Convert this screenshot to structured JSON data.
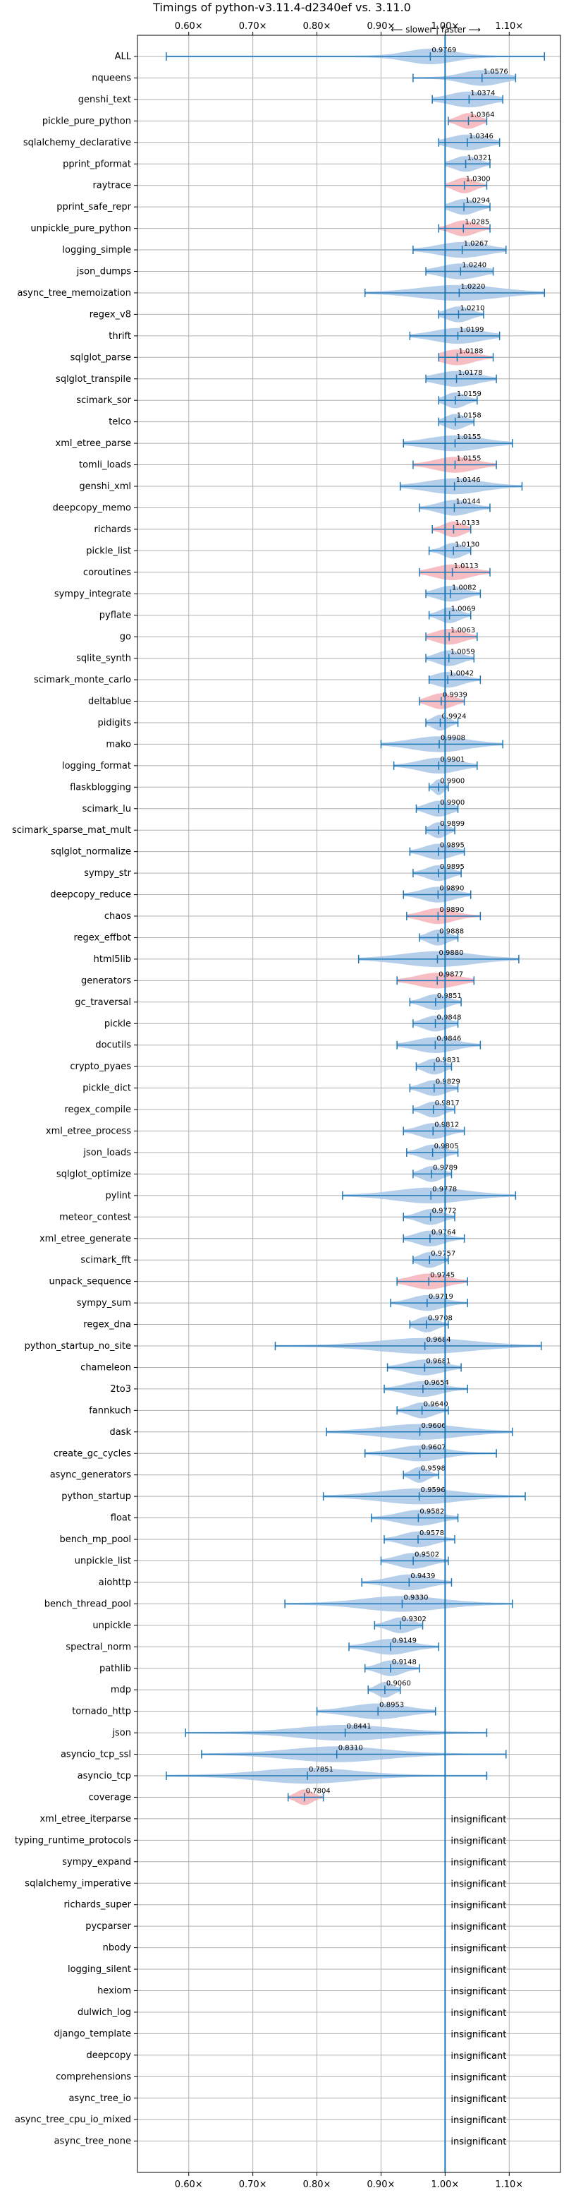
{
  "chart_data": {
    "type": "violin",
    "title": "Timings of python-v3.11.4-d2340ef vs. 3.11.0",
    "direction_label": "⟵ slower | faster ⟶",
    "xlim": [
      0.52,
      1.18
    ],
    "xticks": [
      0.6,
      0.7,
      0.8,
      0.9,
      1.0,
      1.1
    ],
    "xtick_labels": [
      "0.60×",
      "0.70×",
      "0.80×",
      "0.90×",
      "1.00×",
      "1.10×"
    ],
    "reference_line": 1.0,
    "grid": true,
    "colors": {
      "faster": "#a8c6e6",
      "slower": "#f5b3b8",
      "line": "#1f77b4",
      "grid": "#b0b0b0"
    },
    "benchmarks": [
      {
        "name": "ALL",
        "mean": 0.9769,
        "min": 0.565,
        "max": 1.155,
        "spread": 0.06
      },
      {
        "name": "nqueens",
        "mean": 1.0576,
        "min": 0.95,
        "max": 1.11,
        "spread": 0.05
      },
      {
        "name": "genshi_text",
        "mean": 1.0374,
        "min": 0.98,
        "max": 1.09,
        "spread": 0.05
      },
      {
        "name": "pickle_pure_python",
        "mean": 1.0364,
        "min": 1.005,
        "max": 1.065,
        "spread": 0.025
      },
      {
        "name": "sqlalchemy_declarative",
        "mean": 1.0346,
        "min": 0.99,
        "max": 1.085,
        "spread": 0.045
      },
      {
        "name": "pprint_pformat",
        "mean": 1.0321,
        "min": 1.0,
        "max": 1.07,
        "spread": 0.03
      },
      {
        "name": "raytrace",
        "mean": 1.03,
        "min": 1.0,
        "max": 1.065,
        "spread": 0.025
      },
      {
        "name": "pprint_safe_repr",
        "mean": 1.0294,
        "min": 1.0,
        "max": 1.07,
        "spread": 0.03
      },
      {
        "name": "unpickle_pure_python",
        "mean": 1.0285,
        "min": 0.99,
        "max": 1.07,
        "spread": 0.03
      },
      {
        "name": "logging_simple",
        "mean": 1.0267,
        "min": 0.95,
        "max": 1.095,
        "spread": 0.06
      },
      {
        "name": "json_dumps",
        "mean": 1.024,
        "min": 0.97,
        "max": 1.075,
        "spread": 0.05
      },
      {
        "name": "async_tree_memoization",
        "mean": 1.022,
        "min": 0.875,
        "max": 1.155,
        "spread": 0.1
      },
      {
        "name": "regex_v8",
        "mean": 1.021,
        "min": 0.99,
        "max": 1.06,
        "spread": 0.03
      },
      {
        "name": "thrift",
        "mean": 1.0199,
        "min": 0.945,
        "max": 1.085,
        "spread": 0.06
      },
      {
        "name": "sqlglot_parse",
        "mean": 1.0188,
        "min": 0.99,
        "max": 1.075,
        "spread": 0.04
      },
      {
        "name": "sqlglot_transpile",
        "mean": 1.0178,
        "min": 0.97,
        "max": 1.08,
        "spread": 0.05
      },
      {
        "name": "scimark_sor",
        "mean": 1.0159,
        "min": 0.99,
        "max": 1.05,
        "spread": 0.025
      },
      {
        "name": "telco",
        "mean": 1.0158,
        "min": 0.99,
        "max": 1.045,
        "spread": 0.025
      },
      {
        "name": "xml_etree_parse",
        "mean": 1.0155,
        "min": 0.935,
        "max": 1.105,
        "spread": 0.07
      },
      {
        "name": "tomli_loads",
        "mean": 1.0155,
        "min": 0.95,
        "max": 1.08,
        "spread": 0.05
      },
      {
        "name": "genshi_xml",
        "mean": 1.0146,
        "min": 0.93,
        "max": 1.12,
        "spread": 0.07
      },
      {
        "name": "deepcopy_memo",
        "mean": 1.0144,
        "min": 0.96,
        "max": 1.07,
        "spread": 0.04
      },
      {
        "name": "richards",
        "mean": 1.0133,
        "min": 0.98,
        "max": 1.04,
        "spread": 0.025
      },
      {
        "name": "pickle_list",
        "mean": 1.013,
        "min": 0.975,
        "max": 1.04,
        "spread": 0.025
      },
      {
        "name": "coroutines",
        "mean": 1.0113,
        "min": 0.96,
        "max": 1.07,
        "spread": 0.045
      },
      {
        "name": "sympy_integrate",
        "mean": 1.0082,
        "min": 0.97,
        "max": 1.055,
        "spread": 0.035
      },
      {
        "name": "pyflate",
        "mean": 1.0069,
        "min": 0.975,
        "max": 1.04,
        "spread": 0.025
      },
      {
        "name": "go",
        "mean": 1.0063,
        "min": 0.97,
        "max": 1.05,
        "spread": 0.035
      },
      {
        "name": "sqlite_synth",
        "mean": 1.0059,
        "min": 0.97,
        "max": 1.045,
        "spread": 0.03
      },
      {
        "name": "scimark_monte_carlo",
        "mean": 1.0042,
        "min": 0.975,
        "max": 1.055,
        "spread": 0.035
      },
      {
        "name": "deltablue",
        "mean": 0.9939,
        "min": 0.96,
        "max": 1.03,
        "spread": 0.03
      },
      {
        "name": "pidigits",
        "mean": 0.9924,
        "min": 0.97,
        "max": 1.02,
        "spread": 0.02
      },
      {
        "name": "mako",
        "mean": 0.9908,
        "min": 0.9,
        "max": 1.09,
        "spread": 0.07
      },
      {
        "name": "logging_format",
        "mean": 0.9901,
        "min": 0.92,
        "max": 1.05,
        "spread": 0.05
      },
      {
        "name": "flaskblogging",
        "mean": 0.99,
        "min": 0.975,
        "max": 1.005,
        "spread": 0.012
      },
      {
        "name": "scimark_lu",
        "mean": 0.99,
        "min": 0.955,
        "max": 1.02,
        "spread": 0.03
      },
      {
        "name": "scimark_sparse_mat_mult",
        "mean": 0.9899,
        "min": 0.97,
        "max": 1.015,
        "spread": 0.02
      },
      {
        "name": "sqlglot_normalize",
        "mean": 0.9895,
        "min": 0.945,
        "max": 1.03,
        "spread": 0.035
      },
      {
        "name": "sympy_str",
        "mean": 0.9895,
        "min": 0.95,
        "max": 1.025,
        "spread": 0.03
      },
      {
        "name": "deepcopy_reduce",
        "mean": 0.989,
        "min": 0.935,
        "max": 1.04,
        "spread": 0.04
      },
      {
        "name": "chaos",
        "mean": 0.989,
        "min": 0.94,
        "max": 1.055,
        "spread": 0.04
      },
      {
        "name": "regex_effbot",
        "mean": 0.9888,
        "min": 0.96,
        "max": 1.02,
        "spread": 0.025
      },
      {
        "name": "html5lib",
        "mean": 0.988,
        "min": 0.865,
        "max": 1.115,
        "spread": 0.09
      },
      {
        "name": "generators",
        "mean": 0.9877,
        "min": 0.925,
        "max": 1.045,
        "spread": 0.05
      },
      {
        "name": "gc_traversal",
        "mean": 0.9851,
        "min": 0.945,
        "max": 1.025,
        "spread": 0.03
      },
      {
        "name": "pickle",
        "mean": 0.9848,
        "min": 0.95,
        "max": 1.02,
        "spread": 0.03
      },
      {
        "name": "docutils",
        "mean": 0.9846,
        "min": 0.925,
        "max": 1.055,
        "spread": 0.05
      },
      {
        "name": "crypto_pyaes",
        "mean": 0.9831,
        "min": 0.955,
        "max": 1.01,
        "spread": 0.025
      },
      {
        "name": "pickle_dict",
        "mean": 0.9829,
        "min": 0.945,
        "max": 1.02,
        "spread": 0.03
      },
      {
        "name": "regex_compile",
        "mean": 0.9817,
        "min": 0.95,
        "max": 1.015,
        "spread": 0.025
      },
      {
        "name": "xml_etree_process",
        "mean": 0.9812,
        "min": 0.935,
        "max": 1.03,
        "spread": 0.035
      },
      {
        "name": "json_loads",
        "mean": 0.9805,
        "min": 0.94,
        "max": 1.02,
        "spread": 0.03
      },
      {
        "name": "sqlglot_optimize",
        "mean": 0.9789,
        "min": 0.95,
        "max": 1.01,
        "spread": 0.025
      },
      {
        "name": "pylint",
        "mean": 0.9778,
        "min": 0.84,
        "max": 1.11,
        "spread": 0.09
      },
      {
        "name": "meteor_contest",
        "mean": 0.9772,
        "min": 0.935,
        "max": 1.015,
        "spread": 0.03
      },
      {
        "name": "xml_etree_generate",
        "mean": 0.9764,
        "min": 0.935,
        "max": 1.03,
        "spread": 0.035
      },
      {
        "name": "scimark_fft",
        "mean": 0.9757,
        "min": 0.95,
        "max": 1.005,
        "spread": 0.025
      },
      {
        "name": "unpack_sequence",
        "mean": 0.9745,
        "min": 0.925,
        "max": 1.035,
        "spread": 0.045
      },
      {
        "name": "sympy_sum",
        "mean": 0.9719,
        "min": 0.915,
        "max": 1.035,
        "spread": 0.04
      },
      {
        "name": "regex_dna",
        "mean": 0.9708,
        "min": 0.945,
        "max": 1.005,
        "spread": 0.025
      },
      {
        "name": "python_startup_no_site",
        "mean": 0.9684,
        "min": 0.735,
        "max": 1.15,
        "spread": 0.12
      },
      {
        "name": "chameleon",
        "mean": 0.9681,
        "min": 0.91,
        "max": 1.025,
        "spread": 0.045
      },
      {
        "name": "2to3",
        "mean": 0.9654,
        "min": 0.905,
        "max": 1.035,
        "spread": 0.045
      },
      {
        "name": "fannkuch",
        "mean": 0.964,
        "min": 0.925,
        "max": 1.005,
        "spread": 0.03
      },
      {
        "name": "dask",
        "mean": 0.9606,
        "min": 0.815,
        "max": 1.105,
        "spread": 0.1
      },
      {
        "name": "create_gc_cycles",
        "mean": 0.9607,
        "min": 0.875,
        "max": 1.08,
        "spread": 0.06
      },
      {
        "name": "async_generators",
        "mean": 0.9598,
        "min": 0.935,
        "max": 0.99,
        "spread": 0.02
      },
      {
        "name": "python_startup",
        "mean": 0.9596,
        "min": 0.81,
        "max": 1.125,
        "spread": 0.1
      },
      {
        "name": "float",
        "mean": 0.9582,
        "min": 0.885,
        "max": 1.02,
        "spread": 0.05
      },
      {
        "name": "bench_mp_pool",
        "mean": 0.9578,
        "min": 0.905,
        "max": 1.015,
        "spread": 0.04
      },
      {
        "name": "unpickle_list",
        "mean": 0.9502,
        "min": 0.9,
        "max": 1.005,
        "spread": 0.04
      },
      {
        "name": "aiohttp",
        "mean": 0.9439,
        "min": 0.87,
        "max": 1.01,
        "spread": 0.05
      },
      {
        "name": "bench_thread_pool",
        "mean": 0.933,
        "min": 0.75,
        "max": 1.105,
        "spread": 0.1
      },
      {
        "name": "unpickle",
        "mean": 0.9302,
        "min": 0.89,
        "max": 0.965,
        "spread": 0.03
      },
      {
        "name": "spectral_norm",
        "mean": 0.9149,
        "min": 0.85,
        "max": 0.99,
        "spread": 0.05
      },
      {
        "name": "pathlib",
        "mean": 0.9148,
        "min": 0.875,
        "max": 0.96,
        "spread": 0.03
      },
      {
        "name": "mdp",
        "mean": 0.906,
        "min": 0.88,
        "max": 0.93,
        "spread": 0.02
      },
      {
        "name": "tornado_http",
        "mean": 0.8953,
        "min": 0.8,
        "max": 0.985,
        "spread": 0.07
      },
      {
        "name": "json",
        "mean": 0.8441,
        "min": 0.595,
        "max": 1.065,
        "spread": 0.12
      },
      {
        "name": "asyncio_tcp_ssl",
        "mean": 0.831,
        "min": 0.62,
        "max": 1.095,
        "spread": 0.12
      },
      {
        "name": "asyncio_tcp",
        "mean": 0.7851,
        "min": 0.565,
        "max": 1.065,
        "spread": 0.12
      },
      {
        "name": "coverage",
        "mean": 0.7804,
        "min": 0.755,
        "max": 0.81,
        "spread": 0.02
      },
      {
        "name": "xml_etree_iterparse",
        "insignificant": true
      },
      {
        "name": "typing_runtime_protocols",
        "insignificant": true
      },
      {
        "name": "sympy_expand",
        "insignificant": true
      },
      {
        "name": "sqlalchemy_imperative",
        "insignificant": true
      },
      {
        "name": "richards_super",
        "insignificant": true
      },
      {
        "name": "pycparser",
        "insignificant": true
      },
      {
        "name": "nbody",
        "insignificant": true
      },
      {
        "name": "logging_silent",
        "insignificant": true
      },
      {
        "name": "hexiom",
        "insignificant": true
      },
      {
        "name": "dulwich_log",
        "insignificant": true
      },
      {
        "name": "django_template",
        "insignificant": true
      },
      {
        "name": "deepcopy",
        "insignificant": true
      },
      {
        "name": "comprehensions",
        "insignificant": true
      },
      {
        "name": "async_tree_io",
        "insignificant": true
      },
      {
        "name": "async_tree_cpu_io_mixed",
        "insignificant": true
      },
      {
        "name": "async_tree_none",
        "insignificant": true
      }
    ],
    "insignificant_label": "insignificant",
    "highlighted_slower": [
      "pickle_pure_python",
      "raytrace",
      "unpickle_pure_python",
      "sqlglot_parse",
      "tomli_loads",
      "richards",
      "coroutines",
      "go",
      "deltablue",
      "chaos",
      "generators",
      "unpack_sequence",
      "coverage"
    ]
  }
}
